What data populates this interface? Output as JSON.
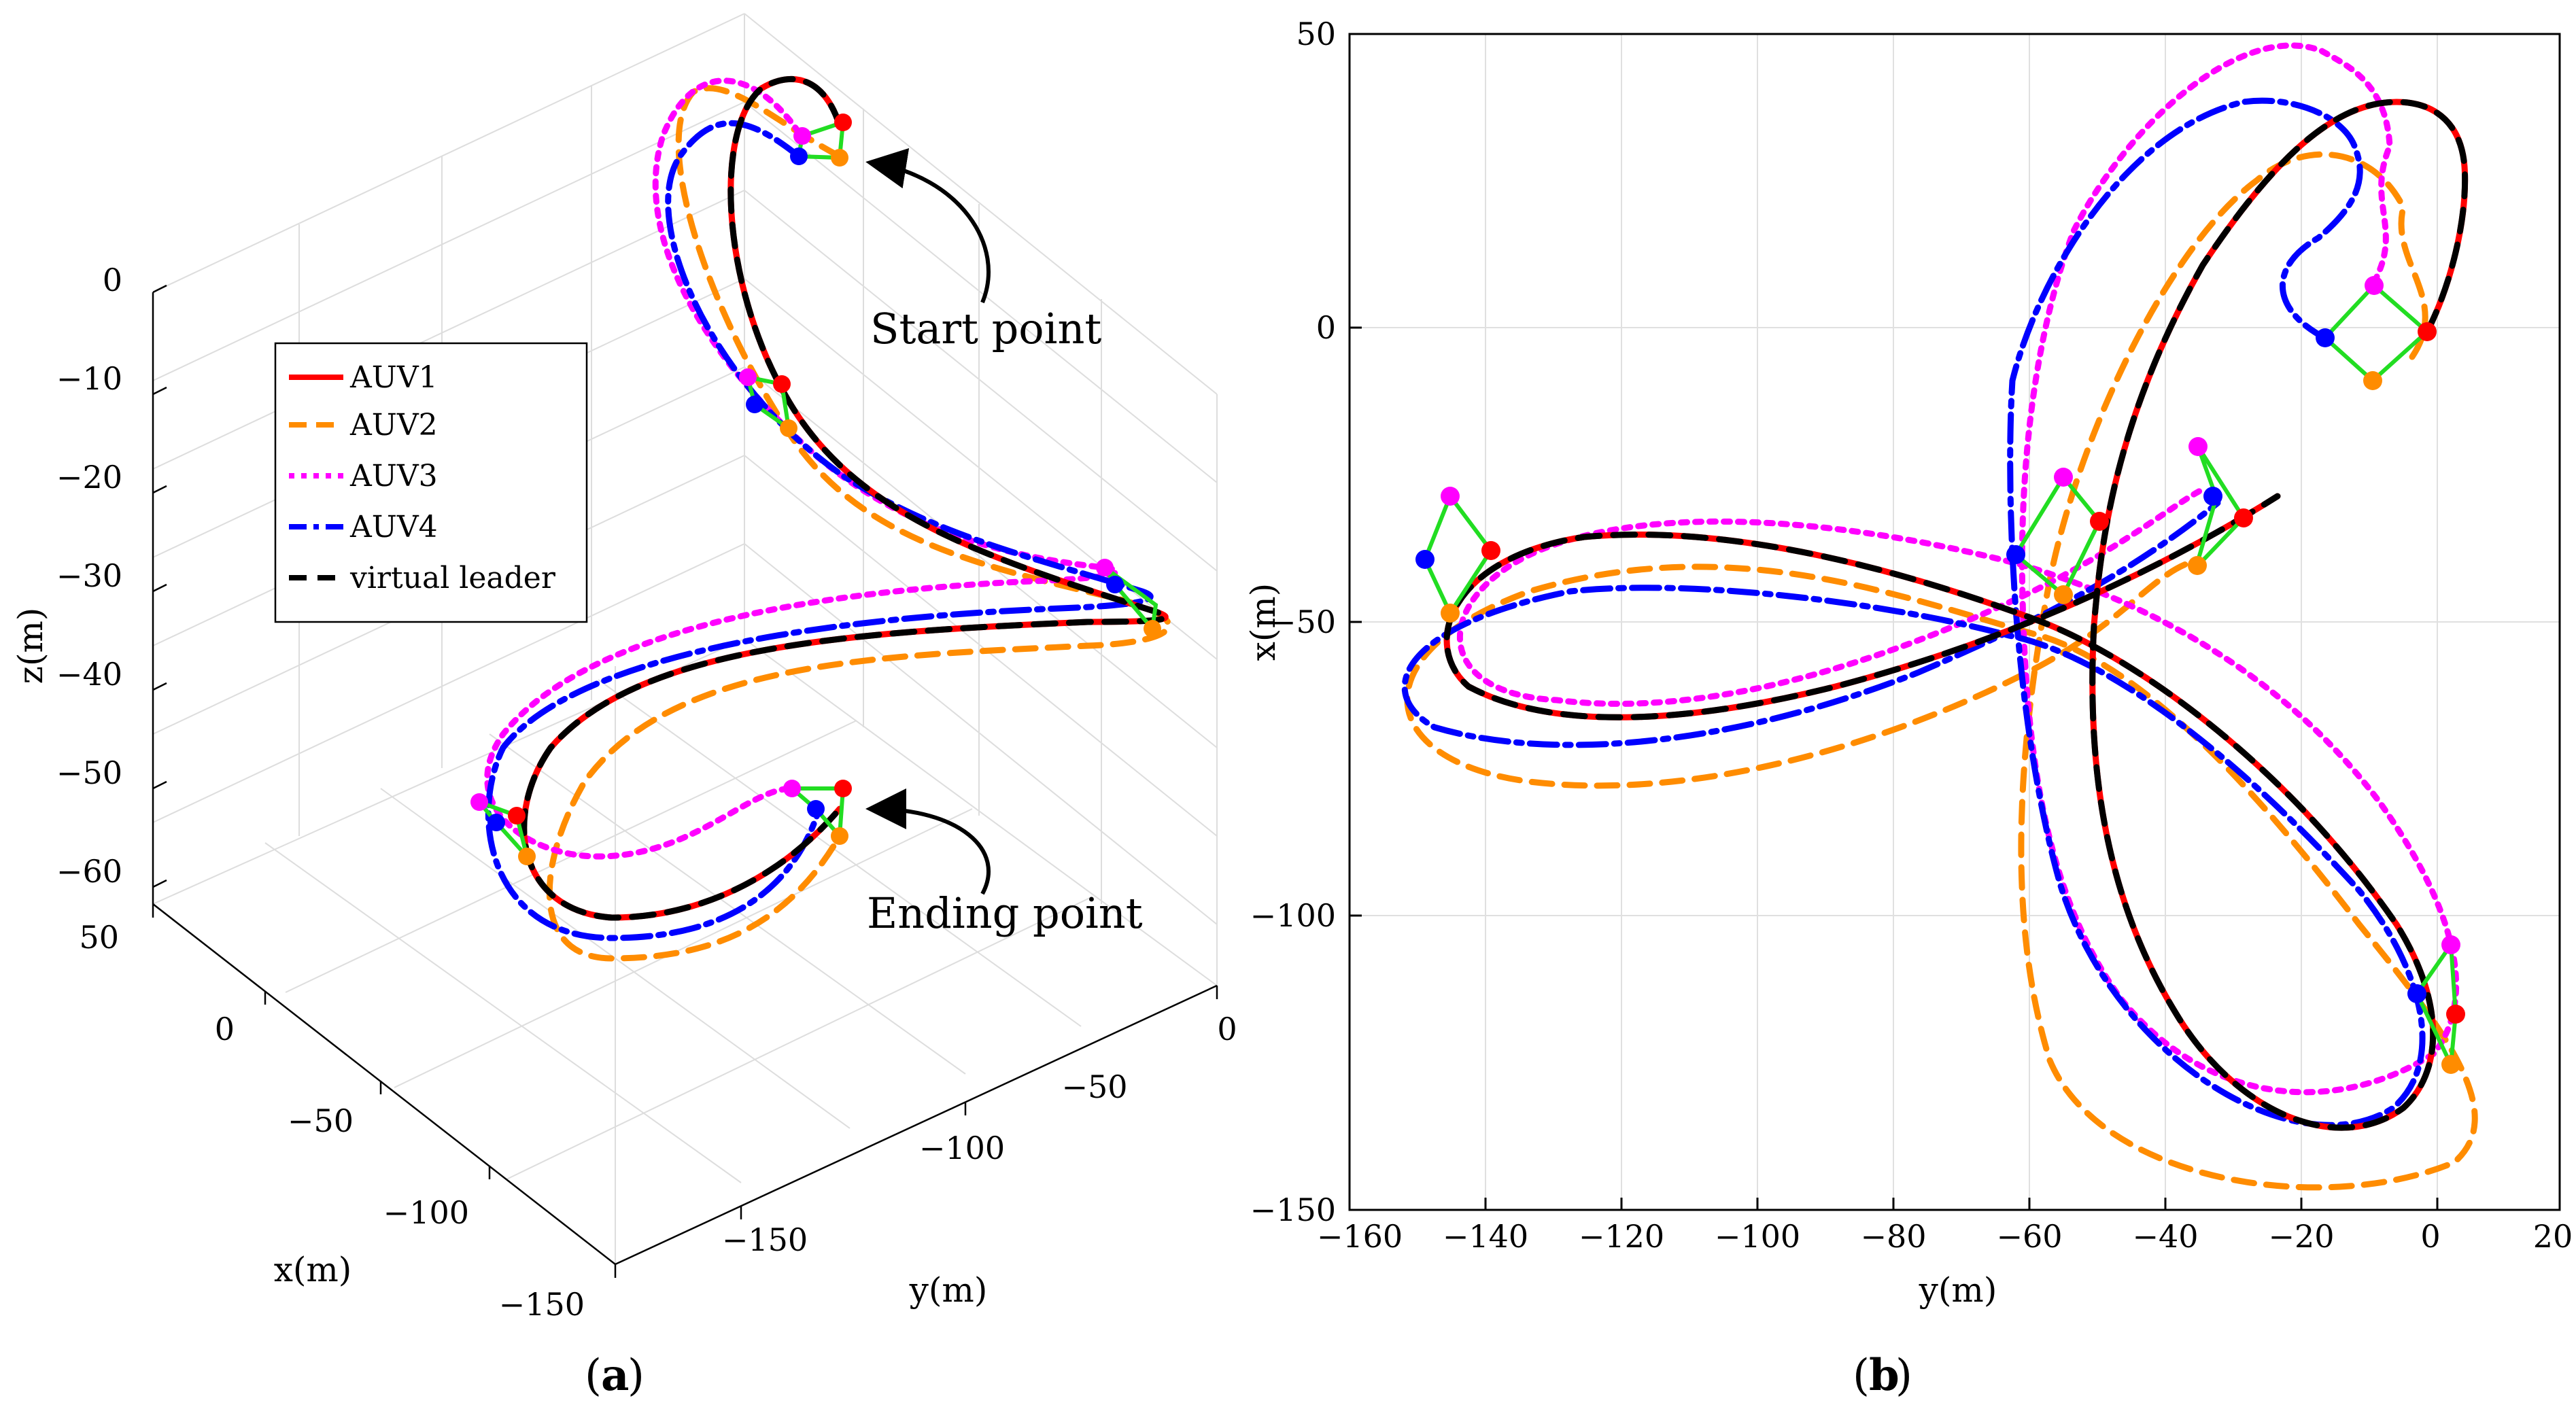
{
  "chart_data": [
    {
      "id": "a",
      "type": "line",
      "projection": "3d",
      "panel_label": "a",
      "xlabel": "x(m)",
      "ylabel": "y(m)",
      "zlabel": "z(m)",
      "x_ticks": [
        "50",
        "0",
        "−50",
        "−100",
        "−150"
      ],
      "y_ticks": [
        "−150",
        "−100",
        "−50",
        "0"
      ],
      "z_ticks": [
        "0",
        "−10",
        "−20",
        "−30",
        "−40",
        "−50",
        "−60"
      ],
      "annotations": [
        "Start point",
        "Ending point"
      ],
      "legend": [
        "AUV1",
        "AUV2",
        "AUV3",
        "AUV4",
        "virtual leader"
      ],
      "legend_position": "upper-left",
      "grid": true,
      "series_names": [
        "AUV1",
        "AUV2",
        "AUV3",
        "AUV4",
        "virtual leader"
      ]
    },
    {
      "id": "b",
      "type": "line",
      "panel_label": "b",
      "xlabel": "y(m)",
      "ylabel": "x(m)",
      "xlim": [
        -160,
        20
      ],
      "ylim": [
        -150,
        50
      ],
      "x_ticks": [
        "−160",
        "−140",
        "−120",
        "−100",
        "−80",
        "−60",
        "−40",
        "−20",
        "0",
        "20"
      ],
      "y_ticks": [
        "50",
        "0",
        "−50",
        "−100",
        "−150"
      ],
      "grid": true,
      "series": [
        {
          "name": "AUV1",
          "color": "#ff0000"
        },
        {
          "name": "AUV2",
          "color": "#ff8c00"
        },
        {
          "name": "AUV3",
          "color": "#ff00ff"
        },
        {
          "name": "AUV4",
          "color": "#0000ff"
        },
        {
          "name": "virtual leader",
          "color": "#000000"
        }
      ]
    }
  ],
  "colors": {
    "auv1": "#ff0000",
    "auv2": "#ff8c00",
    "auv3": "#ff00ff",
    "auv4": "#0000ff",
    "leader": "#000000",
    "formation": "#22dd22"
  }
}
